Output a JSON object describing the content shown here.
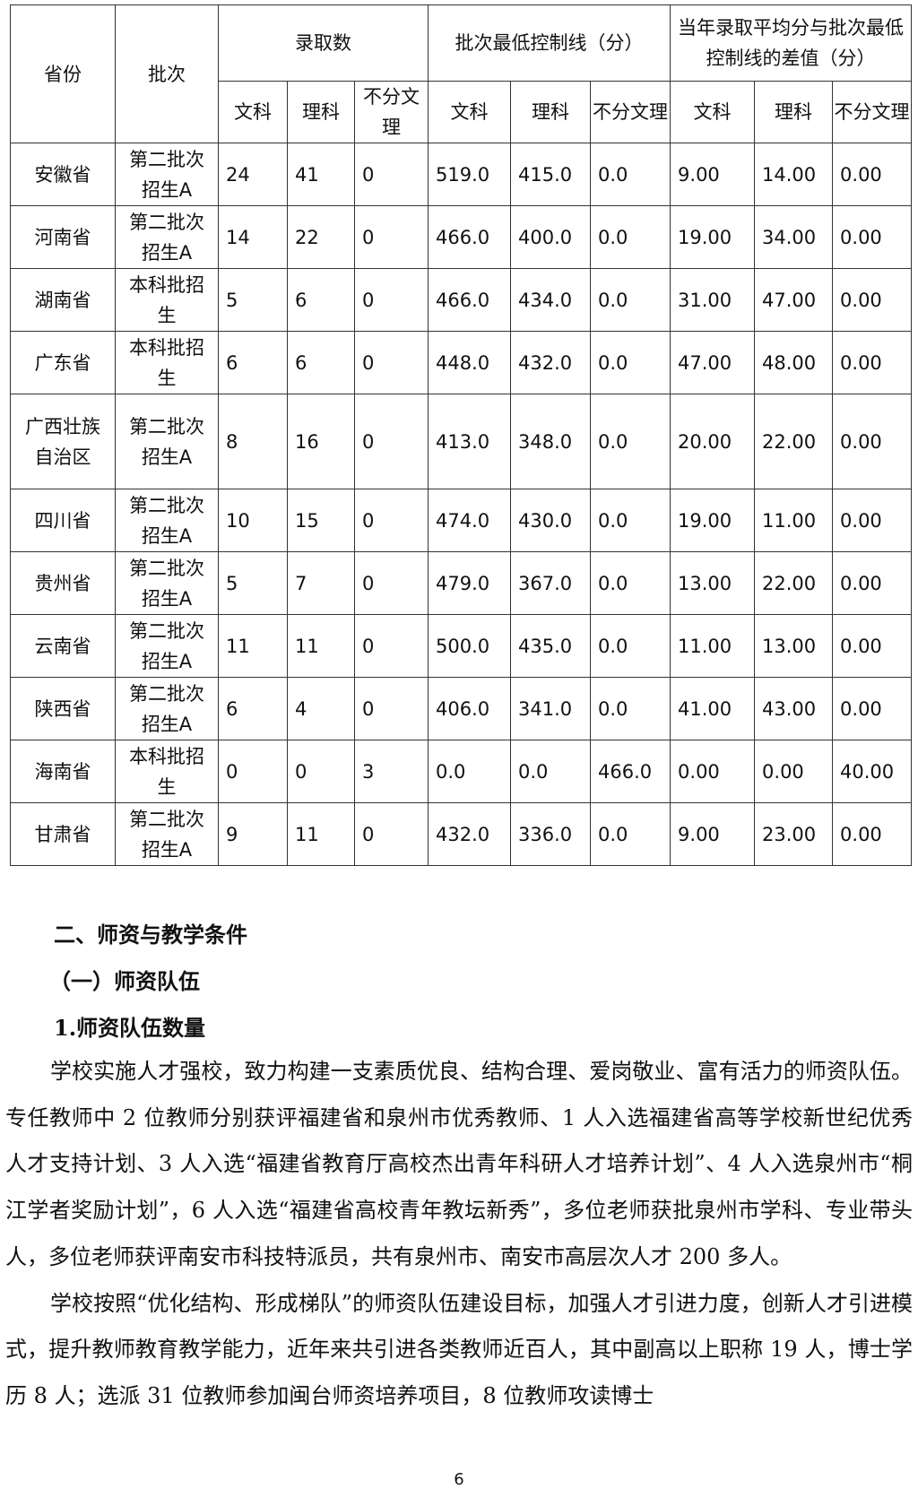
{
  "table": {
    "headers": {
      "province": "省份",
      "batch": "批次",
      "admit": "录取数",
      "control": "批次最低控制线（分）",
      "diff": "当年录取平均分与批次最低控制线的差值（分）",
      "sub": [
        "文科",
        "理科",
        "不分文理"
      ]
    },
    "rows": [
      [
        "安徽省",
        "第二批次招生A",
        "24",
        "41",
        "0",
        "519.0",
        "415.0",
        "0.0",
        "9.00",
        "14.00",
        "0.00"
      ],
      [
        "河南省",
        "第二批次招生A",
        "14",
        "22",
        "0",
        "466.0",
        "400.0",
        "0.0",
        "19.00",
        "34.00",
        "0.00"
      ],
      [
        "湖南省",
        "本科批招生",
        "5",
        "6",
        "0",
        "466.0",
        "434.0",
        "0.0",
        "31.00",
        "47.00",
        "0.00"
      ],
      [
        "广东省",
        "本科批招生",
        "6",
        "6",
        "0",
        "448.0",
        "432.0",
        "0.0",
        "47.00",
        "48.00",
        "0.00"
      ],
      [
        "广西壮族自治区",
        "第二批次招生A",
        "8",
        "16",
        "0",
        "413.0",
        "348.0",
        "0.0",
        "20.00",
        "22.00",
        "0.00"
      ],
      [
        "四川省",
        "第二批次招生A",
        "10",
        "15",
        "0",
        "474.0",
        "430.0",
        "0.0",
        "19.00",
        "11.00",
        "0.00"
      ],
      [
        "贵州省",
        "第二批次招生A",
        "5",
        "7",
        "0",
        "479.0",
        "367.0",
        "0.0",
        "13.00",
        "22.00",
        "0.00"
      ],
      [
        "云南省",
        "第二批次招生A",
        "11",
        "11",
        "0",
        "500.0",
        "435.0",
        "0.0",
        "11.00",
        "13.00",
        "0.00"
      ],
      [
        "陕西省",
        "第二批次招生A",
        "6",
        "4",
        "0",
        "406.0",
        "341.0",
        "0.0",
        "41.00",
        "43.00",
        "0.00"
      ],
      [
        "海南省",
        "本科批招生",
        "0",
        "0",
        "3",
        "0.0",
        "0.0",
        "466.0",
        "0.00",
        "0.00",
        "40.00"
      ],
      [
        "甘肃省",
        "第二批次招生A",
        "9",
        "11",
        "0",
        "432.0",
        "336.0",
        "0.0",
        "9.00",
        "23.00",
        "0.00"
      ]
    ]
  },
  "section": {
    "h2": "二、师资与教学条件",
    "h3": "（一）师资队伍",
    "h4": "1.师资队伍数量"
  },
  "paragraphs": [
    "学校实施人才强校，致力构建一支素质优良、结构合理、爱岗敬业、富有活力的师资队伍。专任教师中 2 位教师分别获评福建省和泉州市优秀教师、1 人入选福建省高等学校新世纪优秀人才支持计划、3 人入选“福建省教育厅高校杰出青年科研人才培养计划”、4 人入选泉州市“桐江学者奖励计划”，6 人入选“福建省高校青年教坛新秀”，多位老师获批泉州市学科、专业带头人，多位老师获评南安市科技特派员，共有泉州市、南安市高层次人才 200 多人。",
    "学校按照“优化结构、形成梯队”的师资队伍建设目标，加强人才引进力度，创新人才引进模式，提升教师教育教学能力，近年来共引进各类教师近百人，其中副高以上职称 19 人，博士学历 8 人；选派 31 位教师参加闽台师资培养项目，8 位教师攻读博士"
  ],
  "page_number": "6"
}
